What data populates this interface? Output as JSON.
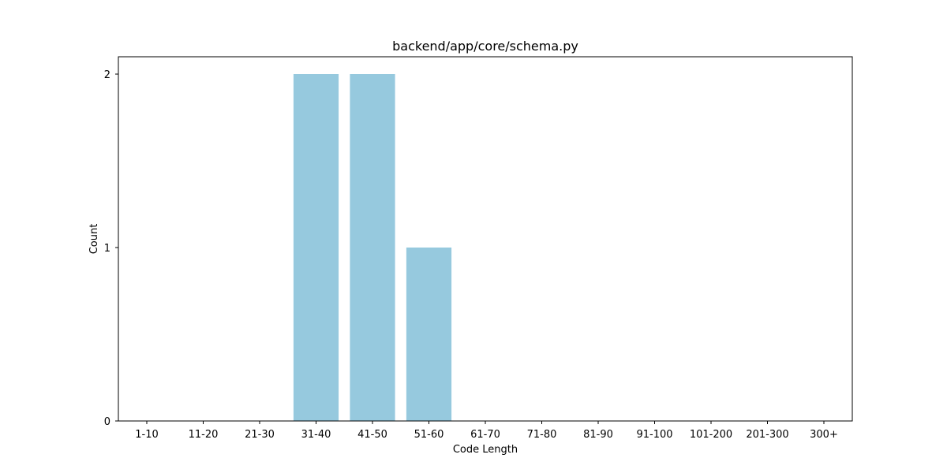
{
  "chart_data": {
    "type": "bar",
    "title": "backend/app/core/schema.py",
    "xlabel": "Code Length",
    "ylabel": "Count",
    "categories": [
      "1-10",
      "11-20",
      "21-30",
      "31-40",
      "41-50",
      "51-60",
      "61-70",
      "71-80",
      "81-90",
      "91-100",
      "101-200",
      "201-300",
      "300+"
    ],
    "values": [
      0,
      0,
      0,
      2,
      2,
      1,
      0,
      0,
      0,
      0,
      0,
      0,
      0
    ],
    "yticks": [
      0,
      1,
      2
    ],
    "ylim": [
      0,
      2.1
    ],
    "grid": false,
    "bar_color": "#96c9de"
  }
}
